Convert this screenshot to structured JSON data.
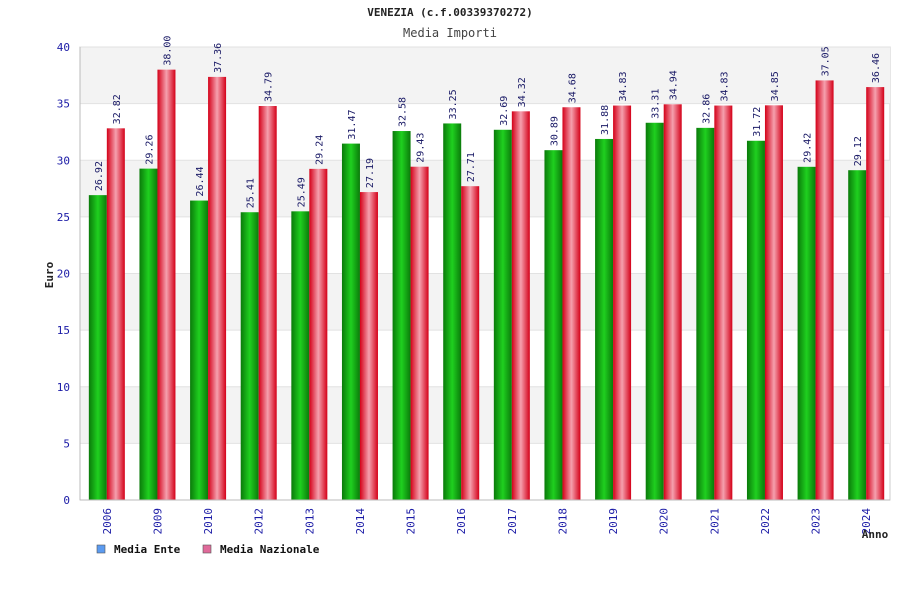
{
  "chart_data": {
    "type": "bar",
    "title": "VENEZIA (c.f.00339370272)",
    "subtitle": "Media Importi",
    "ylabel": "Euro",
    "xlabel": "Anno",
    "ylim": [
      0,
      40
    ],
    "yticks": [
      0,
      5,
      10,
      15,
      20,
      25,
      30,
      35,
      40
    ],
    "grid": true,
    "legend_position": "bottom-left",
    "categories": [
      "2006",
      "2009",
      "2010",
      "2012",
      "2013",
      "2014",
      "2015",
      "2016",
      "2017",
      "2018",
      "2019",
      "2020",
      "2021",
      "2022",
      "2023",
      "2024"
    ],
    "series": [
      {
        "name": "Media Ente",
        "color": "#16b016",
        "legend_color": "#5b9bf0",
        "values": [
          26.92,
          29.26,
          26.44,
          25.41,
          25.49,
          31.47,
          32.58,
          33.25,
          32.69,
          30.89,
          31.88,
          33.31,
          32.86,
          31.72,
          29.42,
          29.12
        ],
        "labels": [
          "26.92",
          "29.26",
          "26.44",
          "25.41",
          "25.49",
          "31.47",
          "32.58",
          "33.25",
          "32.69",
          "30.89",
          "31.88",
          "33.31",
          "32.86",
          "31.72",
          "29.42",
          "29.12"
        ]
      },
      {
        "name": "Media Nazionale",
        "color": "#e8182e",
        "legend_color": "#e06a9a",
        "values": [
          32.82,
          38.0,
          37.36,
          34.79,
          29.24,
          27.19,
          29.43,
          27.71,
          34.32,
          34.68,
          34.83,
          34.94,
          34.83,
          34.85,
          37.05,
          36.46
        ],
        "labels": [
          "32.82",
          "38.00",
          "37.36",
          "34.79",
          "29.24",
          "27.19",
          "29.43",
          "27.71",
          "34.32",
          "34.68",
          "34.83",
          "34.94",
          "34.83",
          "34.85",
          "37.05",
          "36.46"
        ]
      }
    ]
  }
}
